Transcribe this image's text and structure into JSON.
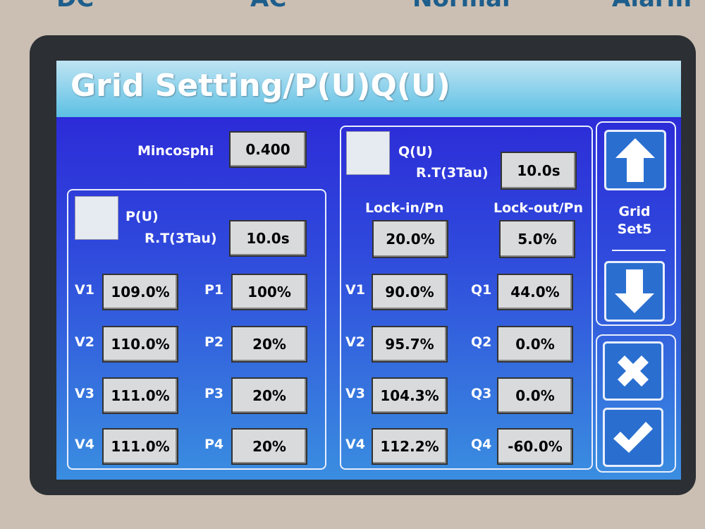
{
  "top_bar": {
    "labels": [
      "DC",
      "AC",
      "Normal",
      "Alarm"
    ]
  },
  "header": {
    "title": "Grid Setting/P(U)Q(U)"
  },
  "mincosphi": {
    "label": "Mincosphi",
    "value": "0.400"
  },
  "pu": {
    "label": "P(U)",
    "rt_label": "R.T(3Tau)",
    "rt_value": "10.0s",
    "rows": [
      {
        "v_label": "V1",
        "v_value": "109.0%",
        "p_label": "P1",
        "p_value": "100%"
      },
      {
        "v_label": "V2",
        "v_value": "110.0%",
        "p_label": "P2",
        "p_value": "20%"
      },
      {
        "v_label": "V3",
        "v_value": "111.0%",
        "p_label": "P3",
        "p_value": "20%"
      },
      {
        "v_label": "V4",
        "v_value": "111.0%",
        "p_label": "P4",
        "p_value": "20%"
      }
    ]
  },
  "qu": {
    "label": "Q(U)",
    "rt_label": "R.T(3Tau)",
    "rt_value": "10.0s",
    "lock_in_label": "Lock-in/Pn",
    "lock_out_label": "Lock-out/Pn",
    "lock_in_value": "20.0%",
    "lock_out_value": "5.0%",
    "rows": [
      {
        "v_label": "V1",
        "v_value": "90.0%",
        "q_label": "Q1",
        "q_value": "44.0%"
      },
      {
        "v_label": "V2",
        "v_value": "95.7%",
        "q_label": "Q2",
        "q_value": "0.0%"
      },
      {
        "v_label": "V3",
        "v_value": "104.3%",
        "q_label": "Q3",
        "q_value": "0.0%"
      },
      {
        "v_label": "V4",
        "v_value": "112.2%",
        "q_label": "Q4",
        "q_value": "-60.0%"
      }
    ]
  },
  "side": {
    "page_line1": "Grid",
    "page_line2": "Set5"
  }
}
